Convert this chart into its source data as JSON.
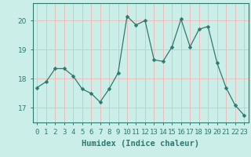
{
  "x": [
    0,
    1,
    2,
    3,
    4,
    5,
    6,
    7,
    8,
    9,
    10,
    11,
    12,
    13,
    14,
    15,
    16,
    17,
    18,
    19,
    20,
    21,
    22,
    23
  ],
  "y": [
    17.7,
    17.9,
    18.35,
    18.35,
    18.1,
    17.65,
    17.5,
    17.2,
    17.65,
    18.2,
    20.15,
    19.85,
    20.0,
    18.65,
    18.6,
    19.1,
    20.05,
    19.1,
    19.7,
    19.8,
    18.55,
    17.7,
    17.1,
    16.75
  ],
  "line_color": "#2d7b6e",
  "marker": "D",
  "marker_size": 2.5,
  "bg_color": "#cceee8",
  "grid_color": "#f0b8b8",
  "xlabel": "Humidex (Indice chaleur)",
  "ylim": [
    16.5,
    20.6
  ],
  "yticks": [
    17,
    18,
    19,
    20
  ],
  "xticks": [
    0,
    1,
    2,
    3,
    4,
    5,
    6,
    7,
    8,
    9,
    10,
    11,
    12,
    13,
    14,
    15,
    16,
    17,
    18,
    19,
    20,
    21,
    22,
    23
  ],
  "xlabel_fontsize": 7.5,
  "tick_fontsize": 6.5,
  "title_color": "#2d7b6e"
}
